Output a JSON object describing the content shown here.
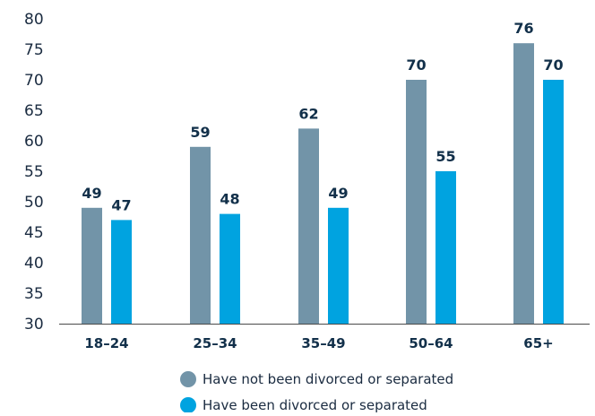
{
  "chart_data": {
    "type": "bar",
    "categories": [
      "18–24",
      "25–34",
      "35–49",
      "50–64",
      "65+"
    ],
    "series": [
      {
        "name": "Have not been divorced or separated",
        "values": [
          49,
          59,
          62,
          70,
          76
        ],
        "color": "#7294a8"
      },
      {
        "name": "Have been divorced or separated",
        "values": [
          47,
          48,
          49,
          55,
          70
        ],
        "color": "#00a3e0"
      }
    ],
    "yticks": [
      "30",
      "35",
      "40",
      "45",
      "50",
      "55",
      "60",
      "65",
      "70",
      "75",
      "80"
    ],
    "ylim": [
      30,
      80
    ],
    "grid": false,
    "legend_position": "bottom-center"
  }
}
